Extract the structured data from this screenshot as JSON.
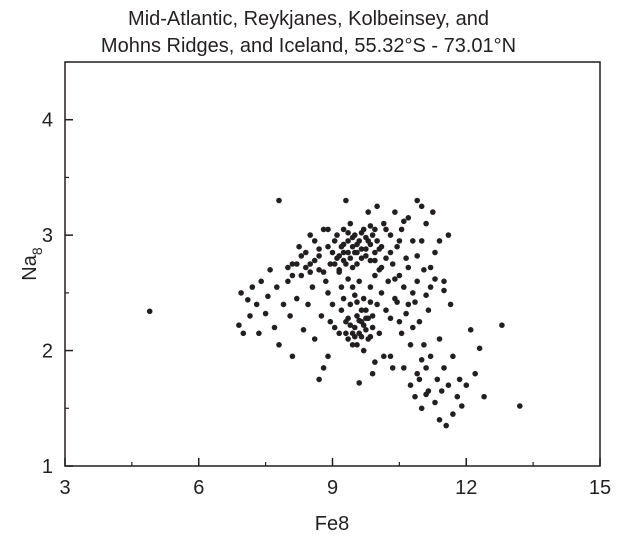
{
  "chart_data": {
    "type": "scatter",
    "title_lines": [
      "Mid-Atlantic, Reykjanes, Kolbeinsey, and",
      "Mohns Ridges, and Iceland, 55.32°S - 73.01°N"
    ],
    "xlabel": "Fe8",
    "ylabel_main": "Na",
    "ylabel_sub": "8",
    "xlim": [
      3,
      15
    ],
    "ylim": [
      1,
      4.5
    ],
    "x_ticks": [
      3,
      6,
      9,
      12,
      15
    ],
    "y_ticks": [
      1,
      2,
      3,
      4
    ],
    "x_ticks_labels": [
      "3",
      "6",
      "9",
      "12",
      "15"
    ],
    "y_ticks_labels": [
      "1",
      "2",
      "3",
      "4"
    ],
    "x_minor_ticks": [
      4.5,
      7.5,
      10.5,
      13.5
    ],
    "y_minor_ticks": [
      1.5,
      2.5,
      3.5,
      4.5
    ],
    "grid": false,
    "marker_color": "#231f20",
    "points": [
      [
        4.9,
        2.34
      ],
      [
        6.9,
        2.22
      ],
      [
        7.0,
        2.15
      ],
      [
        6.95,
        2.5
      ],
      [
        7.1,
        2.44
      ],
      [
        7.15,
        2.3
      ],
      [
        7.2,
        2.55
      ],
      [
        7.3,
        2.4
      ],
      [
        7.35,
        2.15
      ],
      [
        7.4,
        2.6
      ],
      [
        7.5,
        2.32
      ],
      [
        7.55,
        2.47
      ],
      [
        7.6,
        2.7
      ],
      [
        7.7,
        2.2
      ],
      [
        7.75,
        2.55
      ],
      [
        7.8,
        2.05
      ],
      [
        7.8,
        3.3
      ],
      [
        7.9,
        2.4
      ],
      [
        8.0,
        2.6
      ],
      [
        8.05,
        2.3
      ],
      [
        8.1,
        1.95
      ],
      [
        8.1,
        2.75
      ],
      [
        8.2,
        2.45
      ],
      [
        8.25,
        2.9
      ],
      [
        8.3,
        2.65
      ],
      [
        8.35,
        2.18
      ],
      [
        8.4,
        2.85
      ],
      [
        8.45,
        2.4
      ],
      [
        8.5,
        2.75
      ],
      [
        8.5,
        3.0
      ],
      [
        8.55,
        2.55
      ],
      [
        8.6,
        2.1
      ],
      [
        8.6,
        2.95
      ],
      [
        8.7,
        2.7
      ],
      [
        8.7,
        1.75
      ],
      [
        8.7,
        2.82
      ],
      [
        8.75,
        2.3
      ],
      [
        8.8,
        3.05
      ],
      [
        8.8,
        1.85
      ],
      [
        8.85,
        2.6
      ],
      [
        8.9,
        2.9
      ],
      [
        8.9,
        2.5
      ],
      [
        8.95,
        2.75
      ],
      [
        9.0,
        2.85
      ],
      [
        9.0,
        2.4
      ],
      [
        9.05,
        2.95
      ],
      [
        9.05,
        2.2
      ],
      [
        9.1,
        2.8
      ],
      [
        9.1,
        3.0
      ],
      [
        9.15,
        2.7
      ],
      [
        9.15,
        2.15
      ],
      [
        9.2,
        2.9
      ],
      [
        9.2,
        2.35
      ],
      [
        9.25,
        2.85
      ],
      [
        9.25,
        3.05
      ],
      [
        9.3,
        2.75
      ],
      [
        9.3,
        2.25
      ],
      [
        9.3,
        3.3
      ],
      [
        9.35,
        2.95
      ],
      [
        9.35,
        2.1
      ],
      [
        9.4,
        2.8
      ],
      [
        9.4,
        3.1
      ],
      [
        9.4,
        2.4
      ],
      [
        9.45,
        2.9
      ],
      [
        9.45,
        2.05
      ],
      [
        9.5,
        2.85
      ],
      [
        9.5,
        2.2
      ],
      [
        9.5,
        3.0
      ],
      [
        9.55,
        2.75
      ],
      [
        9.55,
        2.3
      ],
      [
        9.6,
        2.95
      ],
      [
        9.6,
        2.15
      ],
      [
        9.6,
        2.6
      ],
      [
        9.65,
        2.88
      ],
      [
        9.65,
        2.25
      ],
      [
        9.7,
        3.05
      ],
      [
        9.7,
        2.0
      ],
      [
        9.7,
        2.45
      ],
      [
        9.75,
        2.82
      ],
      [
        9.75,
        2.35
      ],
      [
        9.8,
        2.95
      ],
      [
        9.8,
        2.1
      ],
      [
        9.8,
        3.2
      ],
      [
        9.85,
        2.78
      ],
      [
        9.85,
        2.55
      ],
      [
        9.9,
        3.0
      ],
      [
        9.9,
        2.3
      ],
      [
        9.9,
        1.8
      ],
      [
        9.95,
        2.85
      ],
      [
        9.95,
        2.65
      ],
      [
        10.0,
        2.95
      ],
      [
        10.0,
        2.4
      ],
      [
        10.0,
        3.25
      ],
      [
        10.05,
        2.7
      ],
      [
        10.05,
        2.15
      ],
      [
        10.1,
        2.9
      ],
      [
        10.1,
        2.5
      ],
      [
        10.15,
        3.1
      ],
      [
        10.2,
        2.8
      ],
      [
        10.2,
        2.35
      ],
      [
        10.25,
        2.6
      ],
      [
        10.3,
        3.0
      ],
      [
        10.3,
        1.95
      ],
      [
        10.35,
        2.75
      ],
      [
        10.4,
        2.45
      ],
      [
        10.4,
        3.2
      ],
      [
        10.45,
        2.9
      ],
      [
        10.5,
        2.25
      ],
      [
        10.5,
        2.65
      ],
      [
        10.55,
        3.05
      ],
      [
        10.6,
        2.55
      ],
      [
        10.6,
        1.85
      ],
      [
        10.65,
        2.8
      ],
      [
        10.7,
        2.4
      ],
      [
        10.7,
        3.15
      ],
      [
        10.75,
        1.7
      ],
      [
        10.8,
        2.95
      ],
      [
        10.8,
        2.2
      ],
      [
        10.85,
        1.6
      ],
      [
        10.9,
        3.3
      ],
      [
        10.9,
        2.6
      ],
      [
        10.95,
        1.75
      ],
      [
        11.0,
        3.25
      ],
      [
        11.0,
        1.5
      ],
      [
        11.05,
        2.7
      ],
      [
        11.1,
        1.85
      ],
      [
        11.1,
        3.1
      ],
      [
        11.15,
        1.65
      ],
      [
        11.2,
        2.55
      ],
      [
        11.2,
        1.95
      ],
      [
        11.25,
        3.2
      ],
      [
        11.3,
        1.55
      ],
      [
        11.3,
        2.85
      ],
      [
        11.35,
        1.75
      ],
      [
        11.4,
        1.4
      ],
      [
        11.4,
        2.1
      ],
      [
        11.45,
        1.65
      ],
      [
        11.5,
        1.85
      ],
      [
        11.5,
        2.6
      ],
      [
        11.55,
        1.35
      ],
      [
        11.6,
        1.7
      ],
      [
        11.6,
        3.0
      ],
      [
        11.65,
        2.4
      ],
      [
        11.7,
        1.45
      ],
      [
        11.7,
        1.95
      ],
      [
        11.8,
        1.6
      ],
      [
        11.85,
        1.75
      ],
      [
        11.9,
        1.52
      ],
      [
        12.0,
        1.7
      ],
      [
        12.1,
        2.18
      ],
      [
        12.2,
        1.8
      ],
      [
        12.3,
        2.02
      ],
      [
        12.4,
        1.6
      ],
      [
        12.8,
        2.22
      ],
      [
        13.2,
        1.52
      ],
      [
        9.6,
        1.72
      ],
      [
        9.5,
        2.48
      ],
      [
        9.2,
        2.55
      ],
      [
        8.9,
        1.95
      ],
      [
        8.95,
        2.25
      ],
      [
        9.25,
        2.45
      ],
      [
        9.35,
        2.62
      ],
      [
        9.45,
        2.55
      ],
      [
        9.55,
        2.42
      ],
      [
        9.65,
        2.35
      ],
      [
        9.75,
        2.18
      ],
      [
        9.85,
        2.12
      ],
      [
        9.55,
        2.05
      ],
      [
        9.45,
        2.15
      ],
      [
        9.35,
        2.28
      ],
      [
        9.65,
        2.12
      ],
      [
        9.75,
        2.28
      ],
      [
        9.85,
        2.42
      ],
      [
        9.4,
        2.22
      ],
      [
        9.6,
        2.26
      ],
      [
        9.5,
        2.12
      ],
      [
        9.7,
        2.22
      ],
      [
        9.3,
        2.15
      ],
      [
        9.8,
        2.28
      ],
      [
        9.9,
        2.2
      ],
      [
        9.15,
        2.82
      ],
      [
        9.25,
        2.92
      ],
      [
        9.35,
        2.85
      ],
      [
        9.45,
        2.98
      ],
      [
        9.55,
        2.92
      ],
      [
        9.65,
        2.8
      ],
      [
        9.75,
        2.98
      ],
      [
        9.85,
        2.92
      ],
      [
        9.95,
        3.05
      ],
      [
        10.05,
        2.88
      ],
      [
        9.05,
        2.75
      ],
      [
        9.15,
        2.68
      ],
      [
        9.25,
        2.78
      ],
      [
        9.35,
        3.02
      ],
      [
        9.45,
        2.72
      ],
      [
        9.55,
        2.85
      ],
      [
        9.65,
        3.02
      ],
      [
        9.75,
        2.88
      ],
      [
        9.85,
        3.08
      ],
      [
        9.95,
        2.78
      ],
      [
        8.8,
        2.68
      ],
      [
        8.7,
        2.88
      ],
      [
        8.6,
        2.78
      ],
      [
        8.5,
        2.68
      ],
      [
        8.4,
        2.72
      ],
      [
        8.3,
        2.82
      ],
      [
        8.2,
        2.75
      ],
      [
        8.1,
        2.65
      ],
      [
        8.0,
        2.72
      ],
      [
        8.9,
        3.05
      ],
      [
        10.1,
        2.72
      ],
      [
        10.2,
        3.05
      ],
      [
        10.3,
        2.85
      ],
      [
        10.4,
        2.62
      ],
      [
        10.5,
        2.95
      ],
      [
        10.6,
        3.12
      ],
      [
        10.7,
        2.72
      ],
      [
        10.8,
        2.5
      ],
      [
        10.9,
        2.82
      ],
      [
        11.0,
        2.95
      ],
      [
        11.1,
        2.48
      ],
      [
        11.2,
        2.72
      ],
      [
        11.3,
        2.62
      ],
      [
        11.4,
        2.95
      ],
      [
        11.5,
        2.52
      ],
      [
        10.3,
        2.28
      ],
      [
        10.45,
        2.42
      ],
      [
        10.55,
        2.15
      ],
      [
        10.65,
        2.32
      ],
      [
        10.75,
        2.05
      ],
      [
        10.85,
        2.42
      ],
      [
        10.95,
        2.25
      ],
      [
        11.05,
        2.05
      ],
      [
        11.15,
        2.35
      ],
      [
        10.35,
        1.85
      ],
      [
        10.15,
        1.95
      ],
      [
        9.95,
        1.9
      ],
      [
        10.9,
        1.8
      ],
      [
        11.0,
        1.92
      ],
      [
        11.1,
        1.62
      ]
    ]
  }
}
